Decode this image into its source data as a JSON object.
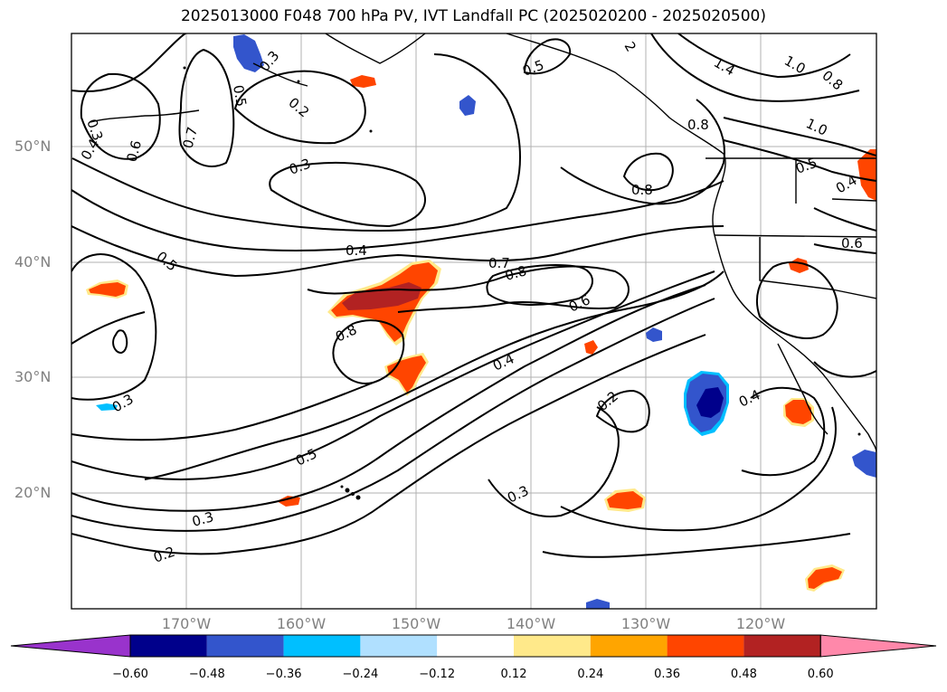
{
  "title": "2025013000 F048 700 hPa PV, IVT Landfall PC (2025020200 - 2025020500)",
  "axes": {
    "lat_ticks": [
      "50°N",
      "40°N",
      "30°N",
      "20°N"
    ],
    "lon_ticks": [
      "170°W",
      "160°W",
      "150°W",
      "140°W",
      "130°W",
      "120°W"
    ]
  },
  "colorbar": {
    "colors": [
      "#9933cc",
      "#00008b",
      "#3355cc",
      "#00bfff",
      "#b0e0ff",
      "#ffffff",
      "#ffe98a",
      "#ffa500",
      "#ff4500",
      "#b22222",
      "#ff88aa"
    ],
    "labels": [
      "−0.60",
      "−0.48",
      "−0.36",
      "−0.24",
      "−0.12",
      "0.12",
      "0.24",
      "0.36",
      "0.48",
      "0.60"
    ]
  },
  "contour_labels": [
    "0.3",
    "0.4",
    "0.6",
    "0.7",
    "0.5",
    "0.2",
    "0.3",
    "0.5",
    "2",
    "1.4",
    "1.0",
    "0.8",
    "0.8",
    "1.0",
    "0.8",
    "0.5",
    "0.4",
    "0.6",
    "0.3",
    "0.4",
    "0.7",
    "0.8",
    "0.5",
    "0.6",
    "0.8",
    "0.4",
    "0.3",
    "0.2",
    "0.5",
    "0.3",
    "0.2",
    "0.3",
    "0.4"
  ]
}
